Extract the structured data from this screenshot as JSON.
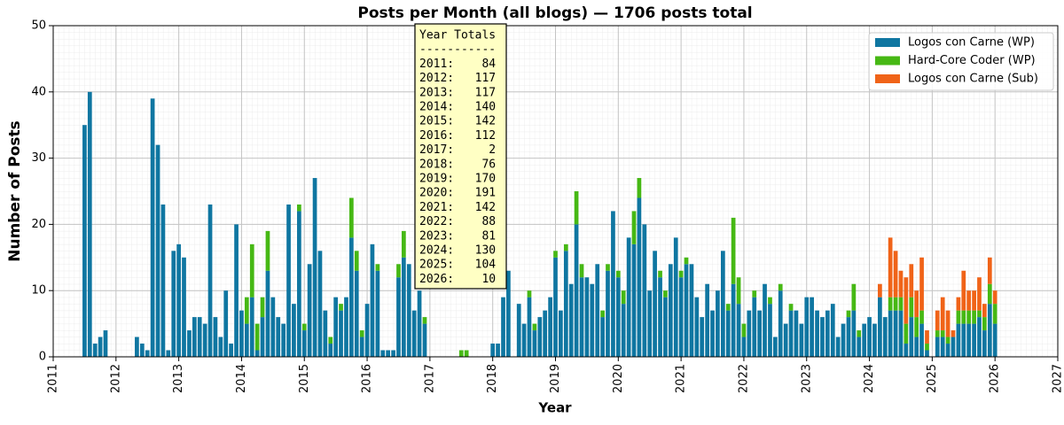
{
  "chart_data": {
    "type": "stacked_bar",
    "title": "Posts per Month (all blogs) — 1706 posts total",
    "xlabel": "Year",
    "ylabel": "Number of Posts",
    "xlim": [
      2011,
      2027
    ],
    "xticks": [
      2011,
      2012,
      2013,
      2014,
      2015,
      2016,
      2017,
      2018,
      2019,
      2020,
      2021,
      2022,
      2023,
      2024,
      2025,
      2026,
      2027
    ],
    "ylim": [
      0,
      50
    ],
    "yticks": [
      0,
      10,
      20,
      30,
      40,
      50
    ],
    "grid": true,
    "legend": "upper right",
    "x": [
      2011.5,
      2011.583,
      2011.667,
      2011.75,
      2011.833,
      2011.917,
      2012,
      2012.083,
      2012.167,
      2012.25,
      2012.333,
      2012.417,
      2012.5,
      2012.583,
      2012.667,
      2012.75,
      2012.833,
      2012.917,
      2013,
      2013.083,
      2013.167,
      2013.25,
      2013.333,
      2013.417,
      2013.5,
      2013.583,
      2013.667,
      2013.75,
      2013.833,
      2013.917,
      2014,
      2014.083,
      2014.167,
      2014.25,
      2014.333,
      2014.417,
      2014.5,
      2014.583,
      2014.667,
      2014.75,
      2014.833,
      2014.917,
      2015,
      2015.083,
      2015.167,
      2015.25,
      2015.333,
      2015.417,
      2015.5,
      2015.583,
      2015.667,
      2015.75,
      2015.833,
      2015.917,
      2016,
      2016.083,
      2016.167,
      2016.25,
      2016.333,
      2016.417,
      2016.5,
      2016.583,
      2016.667,
      2016.75,
      2016.833,
      2016.917,
      2017,
      2017.083,
      2017.167,
      2017.25,
      2017.333,
      2017.417,
      2017.5,
      2017.583,
      2017.667,
      2017.75,
      2017.833,
      2017.917,
      2018,
      2018.083,
      2018.167,
      2018.25,
      2018.333,
      2018.417,
      2018.5,
      2018.583,
      2018.667,
      2018.75,
      2018.833,
      2018.917,
      2019,
      2019.083,
      2019.167,
      2019.25,
      2019.333,
      2019.417,
      2019.5,
      2019.583,
      2019.667,
      2019.75,
      2019.833,
      2019.917,
      2020,
      2020.083,
      2020.167,
      2020.25,
      2020.333,
      2020.417,
      2020.5,
      2020.583,
      2020.667,
      2020.75,
      2020.833,
      2020.917,
      2021,
      2021.083,
      2021.167,
      2021.25,
      2021.333,
      2021.417,
      2021.5,
      2021.583,
      2021.667,
      2021.75,
      2021.833,
      2021.917,
      2022,
      2022.083,
      2022.167,
      2022.25,
      2022.333,
      2022.417,
      2022.5,
      2022.583,
      2022.667,
      2022.75,
      2022.833,
      2022.917,
      2023,
      2023.083,
      2023.167,
      2023.25,
      2023.333,
      2023.417,
      2023.5,
      2023.583,
      2023.667,
      2023.75,
      2023.833,
      2023.917,
      2024,
      2024.083,
      2024.167,
      2024.25,
      2024.333,
      2024.417,
      2024.5,
      2024.583,
      2024.667,
      2024.75,
      2024.833,
      2024.917,
      2025,
      2025.083,
      2025.167,
      2025.25,
      2025.333,
      2025.417,
      2025.5,
      2025.583,
      2025.667,
      2025.75,
      2025.833,
      2025.917,
      2026
    ],
    "series": [
      {
        "name": "Logos con Carne (WP)",
        "color": "#0f76a1",
        "values": [
          35,
          40,
          2,
          3,
          4,
          0,
          0,
          0,
          0,
          0,
          3,
          2,
          1,
          39,
          32,
          23,
          1,
          16,
          17,
          15,
          4,
          6,
          6,
          5,
          23,
          6,
          3,
          10,
          2,
          20,
          7,
          5,
          9,
          1,
          6,
          13,
          9,
          6,
          5,
          23,
          8,
          22,
          4,
          14,
          27,
          16,
          7,
          2,
          9,
          7,
          9,
          18,
          13,
          3,
          8,
          17,
          13,
          1,
          1,
          1,
          12,
          15,
          14,
          7,
          10,
          5,
          0,
          0,
          0,
          0,
          0,
          0,
          0,
          0,
          0,
          0,
          0,
          0,
          2,
          2,
          9,
          13,
          0,
          8,
          5,
          9,
          4,
          6,
          7,
          9,
          15,
          7,
          16,
          11,
          20,
          12,
          12,
          11,
          14,
          6,
          13,
          22,
          12,
          8,
          18,
          17,
          24,
          20,
          10,
          16,
          12,
          9,
          14,
          18,
          12,
          14,
          14,
          9,
          6,
          11,
          7,
          10,
          16,
          7,
          11,
          8,
          3,
          7,
          9,
          7,
          11,
          8,
          3,
          10,
          5,
          7,
          7,
          5,
          9,
          9,
          7,
          6,
          7,
          8,
          3,
          5,
          6,
          7,
          3,
          5,
          6,
          5,
          9,
          6,
          7,
          7,
          7,
          2,
          6,
          3,
          5,
          1,
          0,
          3,
          3,
          2,
          3,
          5,
          5,
          5,
          5,
          6,
          4,
          8,
          5
        ]
      },
      {
        "name": "Hard-Core Coder (WP)",
        "color": "#46b814",
        "values": [
          0,
          0,
          0,
          0,
          0,
          0,
          0,
          0,
          0,
          0,
          0,
          0,
          0,
          0,
          0,
          0,
          0,
          0,
          0,
          0,
          0,
          0,
          0,
          0,
          0,
          0,
          0,
          0,
          0,
          0,
          0,
          4,
          8,
          4,
          3,
          6,
          0,
          0,
          0,
          0,
          0,
          1,
          1,
          0,
          0,
          0,
          0,
          1,
          0,
          1,
          0,
          6,
          3,
          1,
          0,
          0,
          1,
          0,
          0,
          0,
          2,
          4,
          0,
          0,
          0,
          1,
          0,
          0,
          0,
          0,
          0,
          0,
          1,
          1,
          0,
          0,
          0,
          0,
          0,
          0,
          0,
          0,
          0,
          0,
          0,
          1,
          1,
          0,
          0,
          0,
          1,
          0,
          1,
          0,
          5,
          2,
          0,
          0,
          0,
          1,
          1,
          0,
          1,
          2,
          0,
          5,
          3,
          0,
          0,
          0,
          1,
          1,
          0,
          0,
          1,
          1,
          0,
          0,
          0,
          0,
          0,
          0,
          0,
          1,
          10,
          4,
          2,
          0,
          1,
          0,
          0,
          1,
          0,
          1,
          0,
          1,
          0,
          0,
          0,
          0,
          0,
          0,
          0,
          0,
          0,
          0,
          1,
          4,
          1,
          0,
          0,
          0,
          0,
          0,
          2,
          2,
          2,
          3,
          3,
          3,
          2,
          1,
          0,
          1,
          1,
          1,
          0,
          2,
          2,
          2,
          2,
          1,
          2,
          3,
          3
        ]
      },
      {
        "name": "Logos con Carne (Sub)",
        "color": "#f06318",
        "values": [
          0,
          0,
          0,
          0,
          0,
          0,
          0,
          0,
          0,
          0,
          0,
          0,
          0,
          0,
          0,
          0,
          0,
          0,
          0,
          0,
          0,
          0,
          0,
          0,
          0,
          0,
          0,
          0,
          0,
          0,
          0,
          0,
          0,
          0,
          0,
          0,
          0,
          0,
          0,
          0,
          0,
          0,
          0,
          0,
          0,
          0,
          0,
          0,
          0,
          0,
          0,
          0,
          0,
          0,
          0,
          0,
          0,
          0,
          0,
          0,
          0,
          0,
          0,
          0,
          0,
          0,
          0,
          0,
          0,
          0,
          0,
          0,
          0,
          0,
          0,
          0,
          0,
          0,
          0,
          0,
          0,
          0,
          0,
          0,
          0,
          0,
          0,
          0,
          0,
          0,
          0,
          0,
          0,
          0,
          0,
          0,
          0,
          0,
          0,
          0,
          0,
          0,
          0,
          0,
          0,
          0,
          0,
          0,
          0,
          0,
          0,
          0,
          0,
          0,
          0,
          0,
          0,
          0,
          0,
          0,
          0,
          0,
          0,
          0,
          0,
          0,
          0,
          0,
          0,
          0,
          0,
          0,
          0,
          0,
          0,
          0,
          0,
          0,
          0,
          0,
          0,
          0,
          0,
          0,
          0,
          0,
          0,
          0,
          0,
          0,
          0,
          0,
          2,
          0,
          9,
          7,
          4,
          7,
          5,
          4,
          8,
          2,
          0,
          3,
          5,
          4,
          1,
          2,
          6,
          3,
          3,
          5,
          2,
          4,
          2
        ]
      }
    ],
    "annotation": [
      "Year Totals",
      "-----------",
      "2011:    84",
      "2012:   117",
      "2013:   117",
      "2014:   140",
      "2015:   142",
      "2016:   112",
      "2017:     2",
      "2018:    76",
      "2019:   170",
      "2020:   191",
      "2021:   142",
      "2022:    88",
      "2023:    81",
      "2024:   130",
      "2025:   104",
      "2026:    10"
    ]
  }
}
